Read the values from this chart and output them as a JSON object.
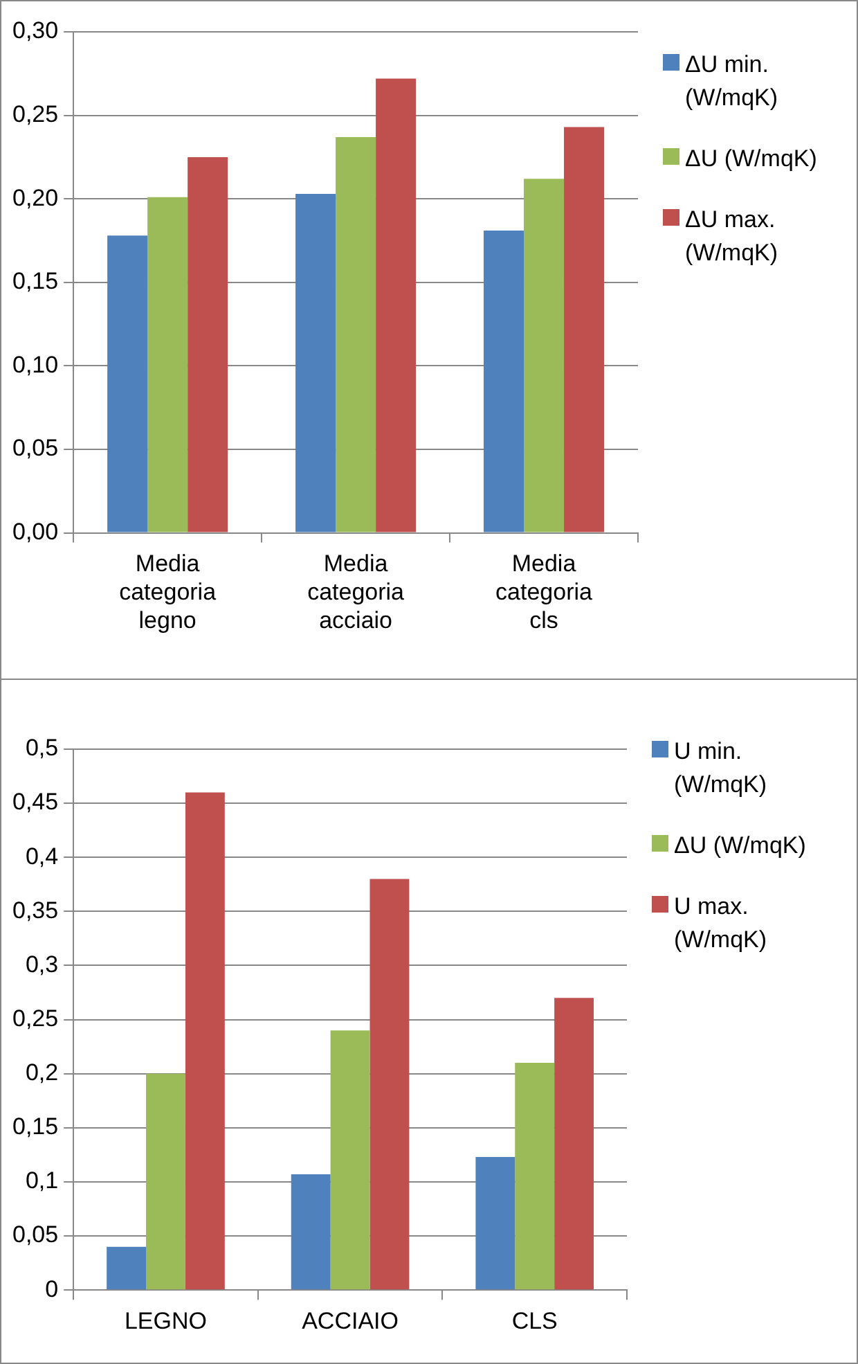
{
  "chart_data": [
    {
      "type": "bar",
      "categories": [
        "Media categoria legno",
        "Media categoria acciaio",
        "Media categoria cls"
      ],
      "series": [
        {
          "name": "ΔU min. (W/mqK)",
          "color": "#4f81bd",
          "values": [
            0.178,
            0.203,
            0.181
          ]
        },
        {
          "name": "ΔU (W/mqK)",
          "color": "#9bbb59",
          "values": [
            0.201,
            0.237,
            0.212
          ]
        },
        {
          "name": "ΔU max. (W/mqK)",
          "color": "#c0504d",
          "values": [
            0.225,
            0.272,
            0.243
          ]
        }
      ],
      "ylim": [
        0,
        0.3
      ],
      "yticks": [
        {
          "value": 0,
          "label": "0,00"
        },
        {
          "value": 0.05,
          "label": "0,05"
        },
        {
          "value": 0.1,
          "label": "0,10"
        },
        {
          "value": 0.15,
          "label": "0,15"
        },
        {
          "value": 0.2,
          "label": "0,20"
        },
        {
          "value": 0.25,
          "label": "0,25"
        },
        {
          "value": 0.3,
          "label": "0,30"
        }
      ],
      "grid": "y",
      "legend": "right"
    },
    {
      "type": "bar",
      "categories": [
        "LEGNO",
        "ACCIAIO",
        "CLS"
      ],
      "series": [
        {
          "name": "U min. (W/mqK)",
          "color": "#4f81bd",
          "values": [
            0.04,
            0.107,
            0.123
          ]
        },
        {
          "name": "ΔU (W/mqK)",
          "color": "#9bbb59",
          "values": [
            0.2,
            0.24,
            0.21
          ]
        },
        {
          "name": "U max. (W/mqK)",
          "color": "#c0504d",
          "values": [
            0.46,
            0.38,
            0.27
          ]
        }
      ],
      "ylim": [
        0,
        0.5
      ],
      "yticks": [
        0,
        {
          "value": 0.05,
          "label": "0,05"
        },
        {
          "value": 0.1,
          "label": "0,1"
        },
        {
          "value": 0.15,
          "label": "0,15"
        },
        {
          "value": 0.2,
          "label": "0,2"
        },
        {
          "value": 0.25,
          "label": "0,25"
        },
        {
          "value": 0.3,
          "label": "0,3"
        },
        {
          "value": 0.35,
          "label": "0,35"
        },
        {
          "value": 0.4,
          "label": "0,4"
        },
        {
          "value": 0.45,
          "label": "0,45"
        },
        {
          "value": 0.5,
          "label": "0,5"
        }
      ],
      "grid": "y",
      "legend": "right"
    }
  ]
}
